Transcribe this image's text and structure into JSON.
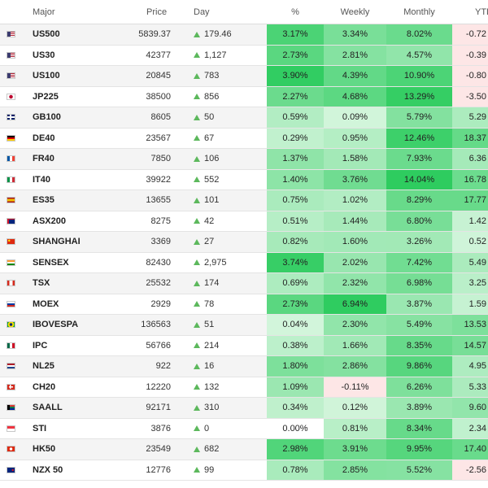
{
  "header": {
    "major": "Major",
    "price": "Price",
    "day": "Day",
    "pct": "%",
    "weekly": "Weekly",
    "monthly": "Monthly",
    "ytd": "YTD"
  },
  "colors": {
    "up_arrow": "#5cb85c",
    "heat_strong": "#2ecc5f",
    "heat_medium": "#7fe097",
    "heat_light": "#c3efcf",
    "heat_negative": "#fde0e0"
  },
  "rows": [
    {
      "flag": "us-flag",
      "name": "US500",
      "price": "5839.37",
      "day": "179.46",
      "pct": "3.17%",
      "weekly": "3.34%",
      "monthly": "8.02%",
      "ytd": "-0.72"
    },
    {
      "flag": "us-flag",
      "name": "US30",
      "price": "42377",
      "day": "1,127",
      "pct": "2.73%",
      "weekly": "2.81%",
      "monthly": "4.57%",
      "ytd": "-0.39"
    },
    {
      "flag": "us-flag",
      "name": "US100",
      "price": "20845",
      "day": "783",
      "pct": "3.90%",
      "weekly": "4.39%",
      "monthly": "10.90%",
      "ytd": "-0.80"
    },
    {
      "flag": "jp-flag",
      "name": "JP225",
      "price": "38500",
      "day": "856",
      "pct": "2.27%",
      "weekly": "4.68%",
      "monthly": "13.29%",
      "ytd": "-3.50"
    },
    {
      "flag": "gb-flag",
      "name": "GB100",
      "price": "8605",
      "day": "50",
      "pct": "0.59%",
      "weekly": "0.09%",
      "monthly": "5.79%",
      "ytd": "5.29"
    },
    {
      "flag": "de-flag",
      "name": "DE40",
      "price": "23567",
      "day": "67",
      "pct": "0.29%",
      "weekly": "0.95%",
      "monthly": "12.46%",
      "ytd": "18.37"
    },
    {
      "flag": "fr-flag",
      "name": "FR40",
      "price": "7850",
      "day": "106",
      "pct": "1.37%",
      "weekly": "1.58%",
      "monthly": "7.93%",
      "ytd": "6.36"
    },
    {
      "flag": "it-flag",
      "name": "IT40",
      "price": "39922",
      "day": "552",
      "pct": "1.40%",
      "weekly": "3.76%",
      "monthly": "14.04%",
      "ytd": "16.78"
    },
    {
      "flag": "es-flag",
      "name": "ES35",
      "price": "13655",
      "day": "101",
      "pct": "0.75%",
      "weekly": "1.02%",
      "monthly": "8.29%",
      "ytd": "17.77"
    },
    {
      "flag": "au-flag",
      "name": "ASX200",
      "price": "8275",
      "day": "42",
      "pct": "0.51%",
      "weekly": "1.44%",
      "monthly": "6.80%",
      "ytd": "1.42"
    },
    {
      "flag": "cn-flag",
      "name": "SHANGHAI",
      "price": "3369",
      "day": "27",
      "pct": "0.82%",
      "weekly": "1.60%",
      "monthly": "3.26%",
      "ytd": "0.52"
    },
    {
      "flag": "in-flag",
      "name": "SENSEX",
      "price": "82430",
      "day": "2,975",
      "pct": "3.74%",
      "weekly": "2.02%",
      "monthly": "7.42%",
      "ytd": "5.49"
    },
    {
      "flag": "ca-flag",
      "name": "TSX",
      "price": "25532",
      "day": "174",
      "pct": "0.69%",
      "weekly": "2.32%",
      "monthly": "6.98%",
      "ytd": "3.25"
    },
    {
      "flag": "ru-flag",
      "name": "MOEX",
      "price": "2929",
      "day": "78",
      "pct": "2.73%",
      "weekly": "6.94%",
      "monthly": "3.87%",
      "ytd": "1.59"
    },
    {
      "flag": "br-flag",
      "name": "IBOVESPA",
      "price": "136563",
      "day": "51",
      "pct": "0.04%",
      "weekly": "2.30%",
      "monthly": "5.49%",
      "ytd": "13.53"
    },
    {
      "flag": "mx-flag",
      "name": "IPC",
      "price": "56766",
      "day": "214",
      "pct": "0.38%",
      "weekly": "1.66%",
      "monthly": "8.35%",
      "ytd": "14.57"
    },
    {
      "flag": "nl-flag",
      "name": "NL25",
      "price": "922",
      "day": "16",
      "pct": "1.80%",
      "weekly": "2.86%",
      "monthly": "9.86%",
      "ytd": "4.95"
    },
    {
      "flag": "ch-flag",
      "name": "CH20",
      "price": "12220",
      "day": "132",
      "pct": "1.09%",
      "weekly": "-0.11%",
      "monthly": "6.26%",
      "ytd": "5.33"
    },
    {
      "flag": "za-flag",
      "name": "SAALL",
      "price": "92171",
      "day": "310",
      "pct": "0.34%",
      "weekly": "0.12%",
      "monthly": "3.89%",
      "ytd": "9.60"
    },
    {
      "flag": "sg-flag",
      "name": "STI",
      "price": "3876",
      "day": "0",
      "pct": "0.00%",
      "weekly": "0.81%",
      "monthly": "8.34%",
      "ytd": "2.34"
    },
    {
      "flag": "hk-flag",
      "name": "HK50",
      "price": "23549",
      "day": "682",
      "pct": "2.98%",
      "weekly": "3.91%",
      "monthly": "9.95%",
      "ytd": "17.40"
    },
    {
      "flag": "nz-flag",
      "name": "NZX 50",
      "price": "12776",
      "day": "99",
      "pct": "0.78%",
      "weekly": "2.85%",
      "monthly": "5.52%",
      "ytd": "-2.56"
    }
  ]
}
